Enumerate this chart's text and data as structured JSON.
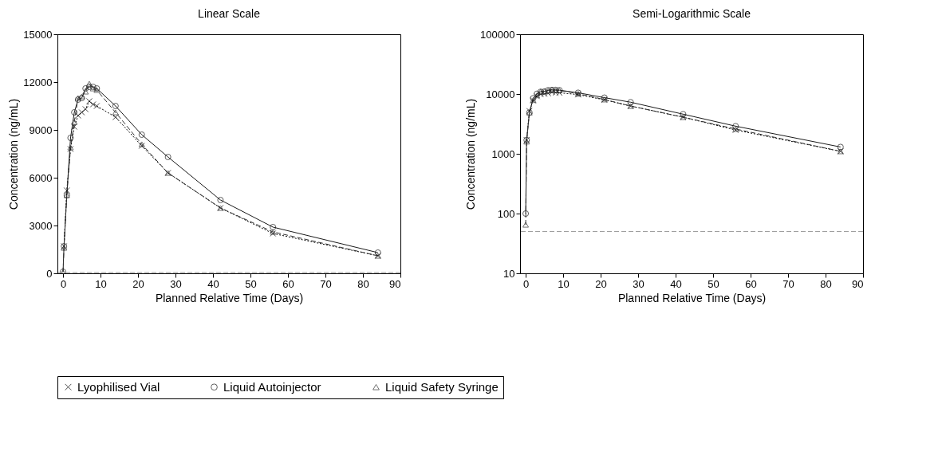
{
  "chart_data": [
    {
      "type": "line",
      "title": "Linear Scale",
      "xlabel": "Planned Relative Time (Days)",
      "ylabel": "Concentration (ng/mL)",
      "x": [
        0,
        0.25,
        1,
        2,
        3,
        4,
        5,
        6,
        7,
        8,
        9,
        14,
        21,
        28,
        42,
        56,
        84
      ],
      "xlim": [
        -1.5,
        90
      ],
      "xticks": [
        0,
        10,
        20,
        30,
        40,
        50,
        60,
        70,
        80,
        90
      ],
      "ylim": [
        0,
        15000
      ],
      "yticks": [
        0,
        3000,
        6000,
        9000,
        12000,
        15000
      ],
      "grid": false,
      "legend": "bottom",
      "series": [
        {
          "name": "Lyophilised Vial",
          "color": "#000000",
          "marker": "cross",
          "line_style": "dotted",
          "values": [
            null,
            1700,
            5200,
            7800,
            9200,
            9900,
            10100,
            10300,
            10800,
            10600,
            10500,
            9800,
            8000,
            6300,
            4100,
            2500,
            1100
          ]
        },
        {
          "name": "Liquid Autoinjector",
          "color": "#1a1a1a",
          "marker": "circle",
          "line_style": "solid",
          "values": [
            100,
            1700,
            4900,
            8500,
            10100,
            10900,
            11000,
            11600,
            11700,
            11700,
            11600,
            10500,
            8700,
            7300,
            4600,
            2900,
            1300
          ]
        },
        {
          "name": "Liquid Safety Syringe",
          "color": "#333333",
          "marker": "triangle",
          "line_style": "dashed",
          "values": [
            65,
            1600,
            4900,
            7900,
            9500,
            11000,
            11100,
            11400,
            11900,
            11600,
            11500,
            10100,
            8100,
            6300,
            4100,
            2600,
            1100
          ]
        }
      ],
      "ref_lines": [
        {
          "axis": "y",
          "value": 50,
          "color": "#999999",
          "line_style": "dashed"
        }
      ]
    },
    {
      "type": "line",
      "title": "Semi-Logarithmic Scale",
      "xlabel": "Planned Relative Time (Days)",
      "ylabel": "Concentration (ng/mL)",
      "x": [
        0,
        0.25,
        1,
        2,
        3,
        4,
        5,
        6,
        7,
        8,
        9,
        14,
        21,
        28,
        42,
        56,
        84
      ],
      "xlim": [
        -1.5,
        90
      ],
      "xticks": [
        0,
        10,
        20,
        30,
        40,
        50,
        60,
        70,
        80,
        90
      ],
      "ylim": [
        10,
        100000
      ],
      "yticks": [
        10,
        100,
        1000,
        10000,
        100000
      ],
      "log": "y",
      "grid": false,
      "legend": "bottom",
      "series": [
        {
          "name": "Lyophilised Vial",
          "color": "#000000",
          "marker": "cross",
          "line_style": "dotted",
          "values": [
            null,
            1700,
            5200,
            7800,
            9200,
            9900,
            10100,
            10300,
            10800,
            10600,
            10500,
            9800,
            8000,
            6300,
            4100,
            2500,
            1100
          ]
        },
        {
          "name": "Liquid Autoinjector",
          "color": "#1a1a1a",
          "marker": "circle",
          "line_style": "solid",
          "values": [
            100,
            1700,
            4900,
            8500,
            10100,
            10900,
            11000,
            11600,
            11700,
            11700,
            11600,
            10500,
            8700,
            7300,
            4600,
            2900,
            1300
          ]
        },
        {
          "name": "Liquid Safety Syringe",
          "color": "#333333",
          "marker": "triangle",
          "line_style": "dashed",
          "values": [
            65,
            1600,
            4900,
            7900,
            9500,
            11000,
            11100,
            11400,
            11900,
            11600,
            11500,
            10100,
            8100,
            6300,
            4100,
            2600,
            1100
          ]
        }
      ],
      "ref_lines": [
        {
          "axis": "y",
          "value": 50,
          "color": "#999999",
          "line_style": "dashed"
        }
      ]
    }
  ]
}
